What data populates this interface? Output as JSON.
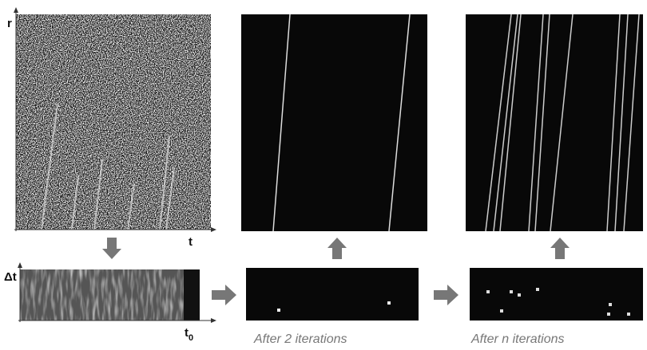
{
  "axes": {
    "r": "r",
    "t": "t",
    "delta_t": "Δt",
    "t0": {
      "base": "t",
      "sub": "0"
    }
  },
  "captions": [
    "After 2 iterations",
    "After n iterations"
  ]
}
